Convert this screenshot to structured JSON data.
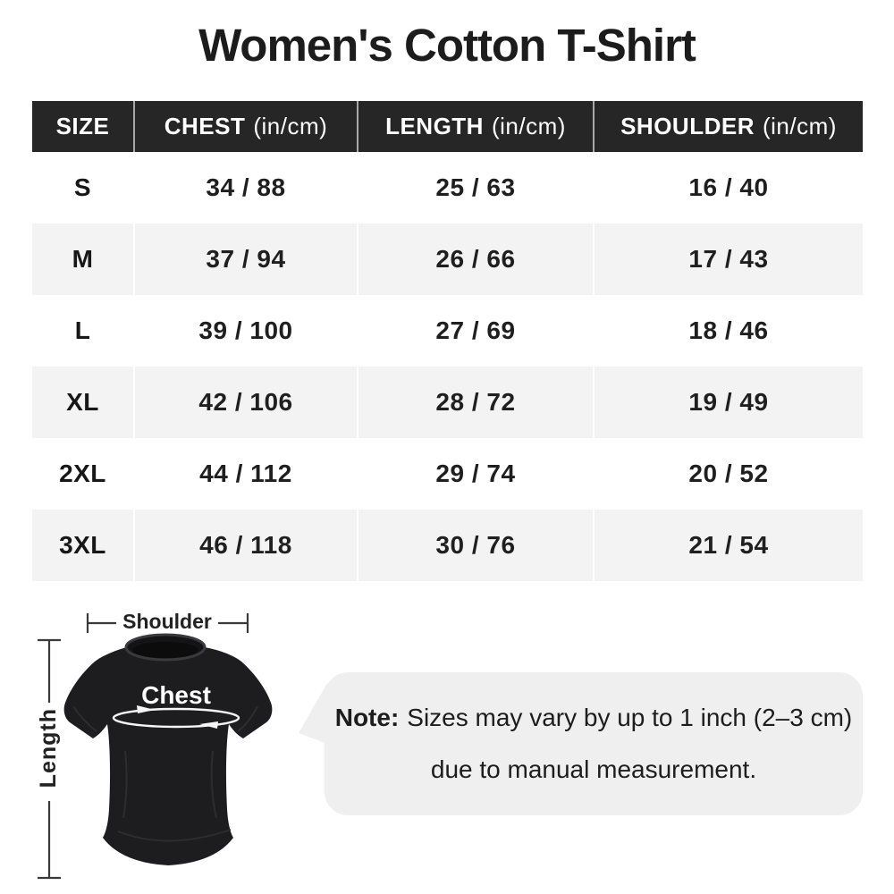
{
  "title": "Women's Cotton T-Shirt",
  "table": {
    "columns": [
      {
        "label": "SIZE",
        "unit": ""
      },
      {
        "label": "CHEST",
        "unit": "(in/cm)"
      },
      {
        "label": "LENGTH",
        "unit": "(in/cm)"
      },
      {
        "label": "SHOULDER",
        "unit": "(in/cm)"
      }
    ],
    "rows": [
      {
        "size": "S",
        "chest": "34 / 88",
        "length": "25 / 63",
        "shoulder": "16 / 40"
      },
      {
        "size": "M",
        "chest": "37 / 94",
        "length": "26 / 66",
        "shoulder": "17 / 43"
      },
      {
        "size": "L",
        "chest": "39 / 100",
        "length": "27 / 69",
        "shoulder": "18 / 46"
      },
      {
        "size": "XL",
        "chest": "42 / 106",
        "length": "28 / 72",
        "shoulder": "19 / 49"
      },
      {
        "size": "2XL",
        "chest": "44 / 112",
        "length": "29 / 74",
        "shoulder": "20 / 52"
      },
      {
        "size": "3XL",
        "chest": "46 / 118",
        "length": "30 / 76",
        "shoulder": "21 / 54"
      }
    ]
  },
  "diagram": {
    "shoulder_label": "Shoulder",
    "length_label": "Length",
    "chest_label": "Chest"
  },
  "note": {
    "prefix": "Note:",
    "line1": "Sizes may vary by up to 1 inch (2–3 cm)",
    "line2": "due to manual measurement."
  },
  "colors": {
    "header_bg": "#262626",
    "header_text": "#ffffff",
    "row_alt_bg": "#f3f3f3",
    "body_text": "#1f1f1f",
    "note_bubble_bg": "#efefef",
    "shirt_fill": "#1d1d1f",
    "annotation_line": "#3a3a3a"
  }
}
